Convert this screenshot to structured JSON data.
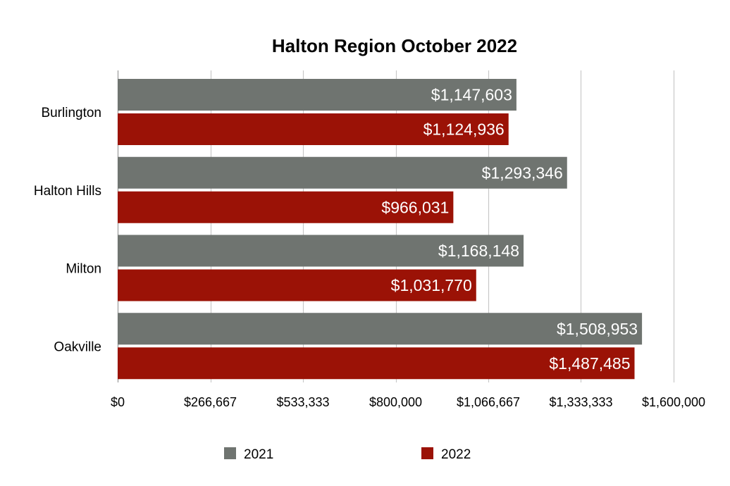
{
  "chart_data": {
    "type": "bar",
    "orientation": "horizontal",
    "title": "Halton Region October 2022",
    "xlabel": "",
    "ylabel": "",
    "categories": [
      "Burlington",
      "Halton Hills",
      "Milton",
      "Oakville"
    ],
    "series": [
      {
        "name": "2021",
        "color": "#6f7470",
        "values": [
          1147603,
          1293346,
          1168148,
          1508953
        ],
        "labels": [
          "$1,147,603",
          "$1,293,346",
          "$1,168,148",
          "$1,508,953"
        ]
      },
      {
        "name": "2022",
        "color": "#9b1206",
        "values": [
          1124936,
          966031,
          1031770,
          1487485
        ],
        "labels": [
          "$1,124,936",
          "$966,031",
          "$1,031,770",
          "$1,487,485"
        ]
      }
    ],
    "xlim": [
      0,
      1600000
    ],
    "x_ticks": [
      0,
      266667,
      533333,
      800000,
      1066667,
      1333333,
      1600000
    ],
    "x_tick_labels": [
      "$0",
      "$266,667",
      "$533,333",
      "$800,000",
      "$1,066,667",
      "$1,333,333",
      "$1,600,000"
    ],
    "grid": true,
    "gridline_color": "#c8c8c8",
    "legend_position": "bottom"
  }
}
